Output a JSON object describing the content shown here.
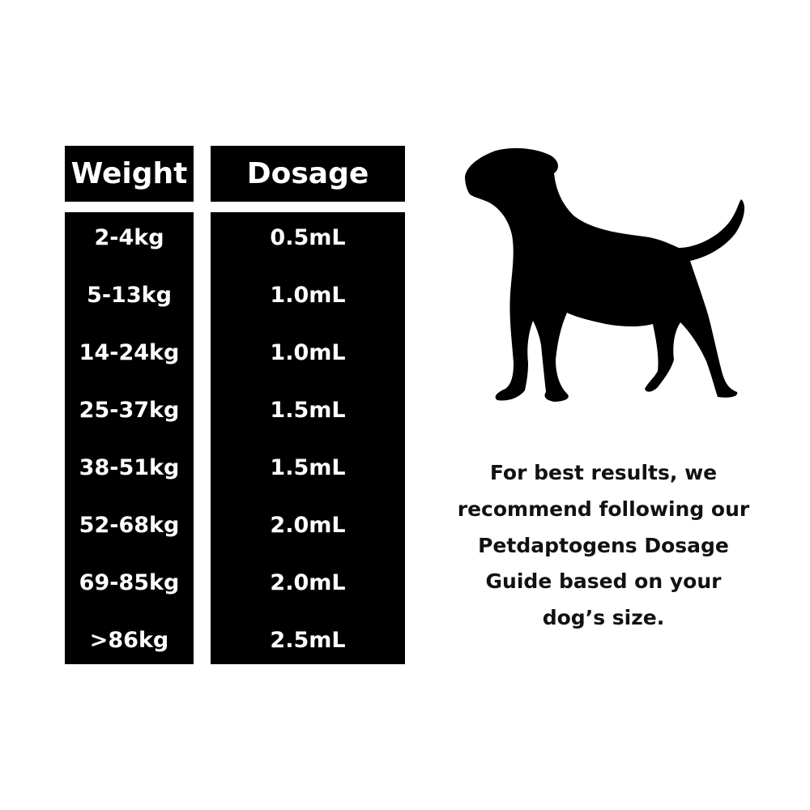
{
  "table": {
    "headers": {
      "weight": "Weight",
      "dosage": "Dosage"
    },
    "rows": [
      {
        "weight": "2-4kg",
        "dosage": "0.5mL"
      },
      {
        "weight": "5-13kg",
        "dosage": "1.0mL"
      },
      {
        "weight": "14-24kg",
        "dosage": "1.0mL"
      },
      {
        "weight": "25-37kg",
        "dosage": "1.5mL"
      },
      {
        "weight": "38-51kg",
        "dosage": "1.5mL"
      },
      {
        "weight": "52-68kg",
        "dosage": "2.0mL"
      },
      {
        "weight": "69-85kg",
        "dosage": "2.0mL"
      },
      {
        "weight": ">86kg",
        "dosage": "2.5mL"
      }
    ]
  },
  "note": {
    "lines": [
      "For best results, we",
      "recommend following our",
      "Petdaptogens Dosage",
      "Guide based on your",
      "dog’s size."
    ]
  },
  "illustration": {
    "icon": "dog-silhouette-icon"
  },
  "colors": {
    "table_bg": "#000000",
    "text_on_table": "#ffffff",
    "background": "#ffffff"
  }
}
